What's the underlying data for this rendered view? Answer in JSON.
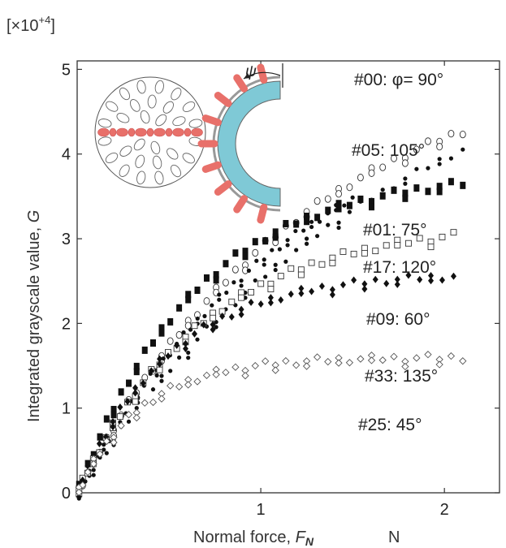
{
  "chart_data": {
    "type": "scatter",
    "scale_label": {
      "base": "[×10",
      "exp": "+4",
      "close": "]"
    },
    "xlabel": {
      "text": "Normal force, ",
      "symbol": "F",
      "subscript": "N",
      "unit": "N"
    },
    "ylabel": {
      "text": "Integrated grayscale value, ",
      "symbol": "G"
    },
    "xlim": [
      0,
      2.3
    ],
    "ylim": [
      0,
      5.1
    ],
    "x_ticks": [
      "1",
      "2"
    ],
    "x_tick_values": [
      1,
      2
    ],
    "y_ticks": [
      "0",
      "1",
      "2",
      "3",
      "4",
      "5"
    ],
    "y_tick_values": [
      0,
      1,
      2,
      3,
      4,
      5
    ],
    "grid": false,
    "series": [
      {
        "name": "#00: φ= 90°",
        "marker": "asterisk",
        "a": 5.8,
        "b": 1.75,
        "n": 2.35,
        "xmax": 2.1
      },
      {
        "name": "#05: 105°",
        "marker": "circle",
        "a": 5.25,
        "b": 1.25,
        "n": 2.1,
        "xmax": 2.1
      },
      {
        "name": "#01: 75°",
        "marker": "asterisk",
        "a": 4.9,
        "b": 1.22,
        "n": 1.5,
        "xmax": 1.5
      },
      {
        "name": "#17: 120°",
        "marker": "filled-square",
        "a": 3.8,
        "b": 0.65,
        "n": 1.4,
        "xmax": 2.1
      },
      {
        "name": "#09: 60°",
        "marker": "open-square",
        "a": 3.2,
        "b": 0.69,
        "n": 1.4,
        "xmax": 2.05
      },
      {
        "name": "#33: 135°",
        "marker": "filled-diamond",
        "a": 2.6,
        "b": 0.5,
        "n": 1.1,
        "xmax": 2.05
      },
      {
        "name": "#25: 45°",
        "marker": "open-diamond",
        "a": 1.6,
        "b": 0.35,
        "n": 0.9,
        "xmax": 2.1
      }
    ],
    "inset_labels": {
      "psi": "ψ"
    }
  }
}
